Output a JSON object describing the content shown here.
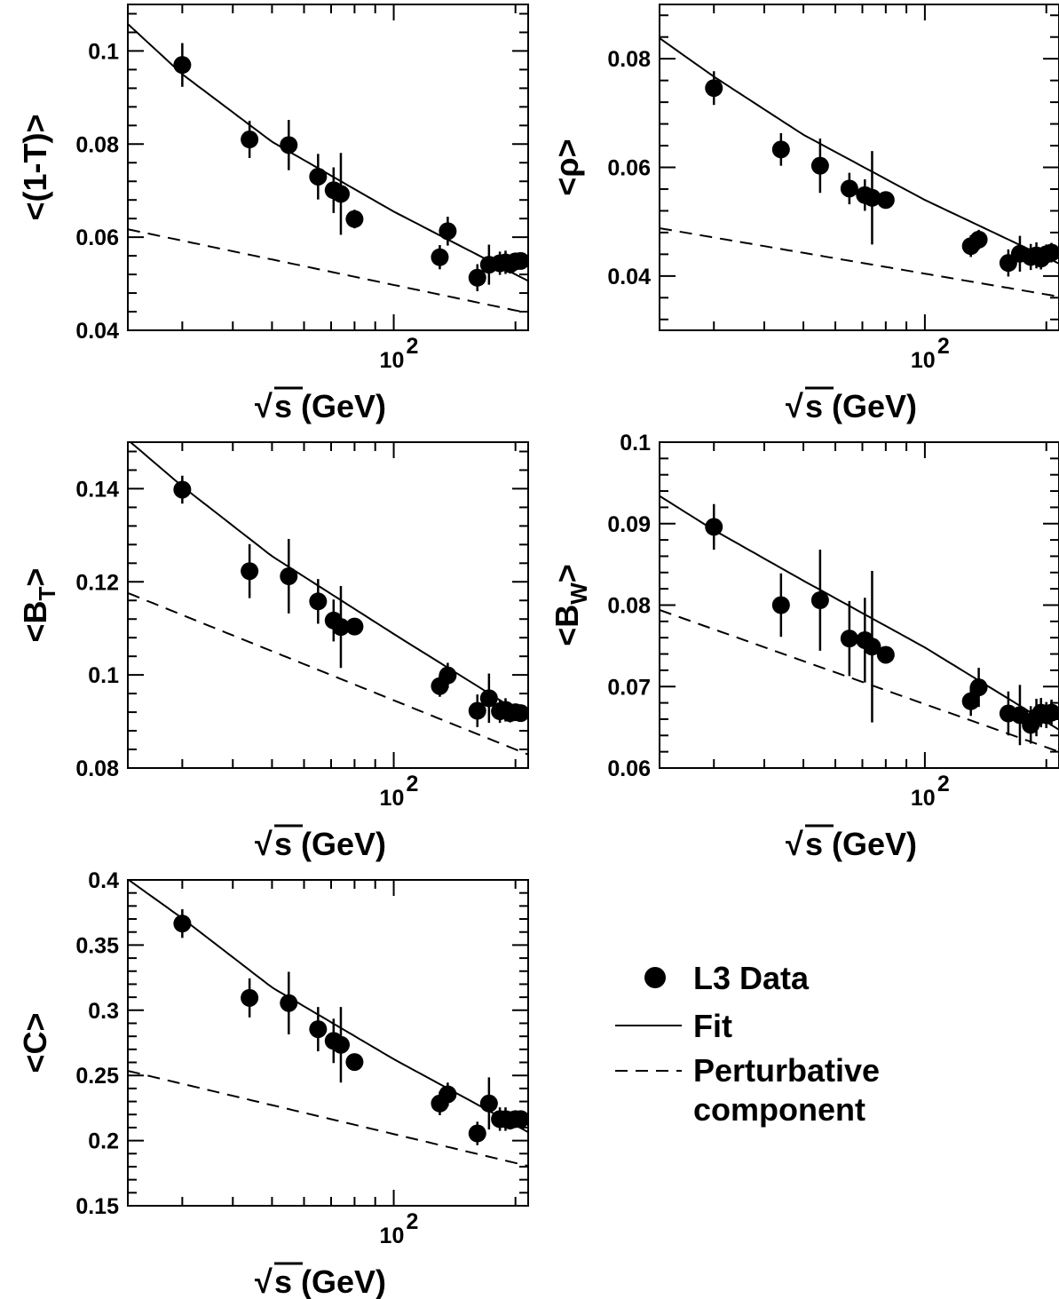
{
  "figure": {
    "x_axis": {
      "scale": "log",
      "range": [
        22,
        215
      ],
      "tick_label_base": "10",
      "tick_label_exp": "2",
      "title": "s  (GeV)",
      "sqrt_symbol": "√"
    },
    "legend": {
      "placement": "lower-right",
      "data_label": "L3 Data",
      "fit_label": "Fit",
      "pert_label_line1": "Perturbative",
      "pert_label_line2": "component"
    },
    "colors": {
      "ink": "#000000",
      "background": "#ffffff"
    }
  },
  "chart_data": [
    {
      "type": "scatter",
      "ylabel": "<(1-T)>",
      "ylim": [
        0.04,
        0.11
      ],
      "yticks": [
        0.04,
        0.06,
        0.08,
        0.1
      ],
      "ytick_labels": [
        "0.04",
        "0.06",
        "0.08",
        "0.1"
      ],
      "series": [
        {
          "name": "L3 Data",
          "kind": "points",
          "x": [
            30,
            44,
            55,
            65,
            71,
            74,
            80,
            130,
            136,
            161,
            172,
            183,
            189,
            194,
            200,
            206
          ],
          "y": [
            0.097,
            0.081,
            0.0798,
            0.073,
            0.0701,
            0.0693,
            0.0639,
            0.0557,
            0.0613,
            0.0513,
            0.0541,
            0.0544,
            0.0546,
            0.0542,
            0.0548,
            0.0549
          ],
          "err": [
            0.0047,
            0.004,
            0.0054,
            0.0049,
            0.0049,
            0.0088,
            0.002,
            0.0026,
            0.0031,
            0.0029,
            0.0043,
            0.0025,
            0.0025,
            0.002,
            0.0018,
            0.0018
          ]
        },
        {
          "name": "Fit",
          "kind": "curve",
          "style": "solid",
          "x": [
            22,
            30,
            50,
            100,
            215
          ],
          "y": [
            0.1058,
            0.095,
            0.0805,
            0.0655,
            0.0506
          ]
        },
        {
          "name": "Perturbative component",
          "kind": "curve",
          "style": "dashed",
          "x": [
            22,
            215
          ],
          "y": [
            0.0617,
            0.0437
          ]
        }
      ]
    },
    {
      "type": "scatter",
      "ylabel": "<ρ>",
      "ylim": [
        0.03,
        0.09
      ],
      "yticks": [
        0.04,
        0.06,
        0.08
      ],
      "ytick_labels": [
        "0.04",
        "0.06",
        "0.08"
      ],
      "series": [
        {
          "name": "L3 Data",
          "kind": "points",
          "x": [
            30,
            44,
            55,
            65,
            71,
            74,
            80,
            130,
            136,
            161,
            172,
            183,
            189,
            194,
            200,
            206
          ],
          "y": [
            0.0746,
            0.0633,
            0.0603,
            0.0561,
            0.0549,
            0.0544,
            0.054,
            0.0455,
            0.0467,
            0.0424,
            0.0441,
            0.0435,
            0.0438,
            0.0432,
            0.044,
            0.0443
          ],
          "err": [
            0.0031,
            0.003,
            0.005,
            0.0029,
            0.0029,
            0.0086,
            0.0013,
            0.002,
            0.0018,
            0.0025,
            0.0033,
            0.0024,
            0.0024,
            0.002,
            0.0018,
            0.0018
          ]
        },
        {
          "name": "Fit",
          "kind": "curve",
          "style": "solid",
          "x": [
            22,
            30,
            50,
            100,
            215
          ],
          "y": [
            0.0838,
            0.0767,
            0.066,
            0.054,
            0.0423
          ]
        },
        {
          "name": "Perturbative component",
          "kind": "curve",
          "style": "dashed",
          "x": [
            22,
            215
          ],
          "y": [
            0.0488,
            0.0362
          ]
        }
      ]
    },
    {
      "type": "scatter",
      "ylabel": "<B",
      "ylabel_sub": "T",
      "ylim": [
        0.08,
        0.15
      ],
      "yticks": [
        0.08,
        0.1,
        0.12,
        0.14
      ],
      "ytick_labels": [
        "0.08",
        "0.1",
        "0.12",
        "0.14"
      ],
      "series": [
        {
          "name": "L3 Data",
          "kind": "points",
          "x": [
            30,
            44,
            55,
            65,
            71,
            74,
            80,
            130,
            136,
            161,
            172,
            183,
            189,
            194,
            200,
            206
          ],
          "y": [
            0.1398,
            0.1223,
            0.1212,
            0.1158,
            0.1117,
            0.1103,
            0.1104,
            0.0976,
            0.0999,
            0.0923,
            0.095,
            0.0922,
            0.0925,
            0.0918,
            0.092,
            0.0918
          ],
          "err": [
            0.003,
            0.0058,
            0.008,
            0.0048,
            0.0045,
            0.0088,
            0.0011,
            0.0023,
            0.0027,
            0.0035,
            0.0053,
            0.0025,
            0.0025,
            0.002,
            0.0018,
            0.0018
          ]
        },
        {
          "name": "Fit",
          "kind": "curve",
          "style": "solid",
          "x": [
            22,
            30,
            50,
            100,
            215
          ],
          "y": [
            0.1505,
            0.1405,
            0.1255,
            0.1088,
            0.0908
          ]
        },
        {
          "name": "Perturbative component",
          "kind": "curve",
          "style": "dashed",
          "x": [
            22,
            215
          ],
          "y": [
            0.1176,
            0.0829
          ]
        }
      ]
    },
    {
      "type": "scatter",
      "ylabel": "<B",
      "ylabel_sub": "W",
      "ylim": [
        0.06,
        0.1
      ],
      "yticks": [
        0.06,
        0.07,
        0.08,
        0.09,
        0.1
      ],
      "ytick_labels": [
        "0.06",
        "0.07",
        "0.08",
        "0.09",
        "0.1"
      ],
      "series": [
        {
          "name": "L3 Data",
          "kind": "points",
          "x": [
            30,
            44,
            55,
            65,
            71,
            74,
            80,
            130,
            136,
            161,
            172,
            183,
            189,
            194,
            200,
            206
          ],
          "y": [
            0.0896,
            0.08,
            0.0806,
            0.0759,
            0.0757,
            0.0749,
            0.0739,
            0.0682,
            0.0699,
            0.0667,
            0.0665,
            0.0653,
            0.0662,
            0.0668,
            0.0665,
            0.0668
          ],
          "err": [
            0.0028,
            0.0039,
            0.0062,
            0.0046,
            0.0052,
            0.0093,
            0.0009,
            0.0018,
            0.0024,
            0.0027,
            0.0037,
            0.0023,
            0.0023,
            0.0018,
            0.0016,
            0.0016
          ]
        },
        {
          "name": "Fit",
          "kind": "curve",
          "style": "solid",
          "x": [
            22,
            30,
            50,
            100,
            215
          ],
          "y": [
            0.0934,
            0.0892,
            0.083,
            0.0748,
            0.0647
          ]
        },
        {
          "name": "Perturbative component",
          "kind": "curve",
          "style": "dashed",
          "x": [
            22,
            215
          ],
          "y": [
            0.0794,
            0.062
          ]
        }
      ]
    },
    {
      "type": "scatter",
      "ylabel": "<C>",
      "ylim": [
        0.15,
        0.4
      ],
      "yticks": [
        0.15,
        0.2,
        0.25,
        0.3,
        0.35,
        0.4
      ],
      "ytick_labels": [
        "0.15",
        "0.2",
        "0.25",
        "0.3",
        "0.35",
        "0.4"
      ],
      "series": [
        {
          "name": "L3 Data",
          "kind": "points",
          "x": [
            30,
            44,
            55,
            65,
            71,
            74,
            80,
            130,
            136,
            161,
            172,
            183,
            189,
            194,
            200,
            206
          ],
          "y": [
            0.3665,
            0.3095,
            0.3055,
            0.2855,
            0.2765,
            0.2735,
            0.2603,
            0.2285,
            0.2355,
            0.2055,
            0.2285,
            0.2165,
            0.2165,
            0.2155,
            0.2165,
            0.2165
          ],
          "err": [
            0.011,
            0.015,
            0.024,
            0.017,
            0.017,
            0.029,
            0.005,
            0.009,
            0.009,
            0.009,
            0.02,
            0.009,
            0.009,
            0.007,
            0.006,
            0.006
          ]
        },
        {
          "name": "Fit",
          "kind": "curve",
          "style": "solid",
          "x": [
            22,
            30,
            50,
            100,
            215
          ],
          "y": [
            0.4005,
            0.3705,
            0.3175,
            0.2625,
            0.2065
          ]
        },
        {
          "name": "Perturbative component",
          "kind": "curve",
          "style": "dashed",
          "x": [
            22,
            215
          ],
          "y": [
            0.2535,
            0.1805
          ]
        }
      ]
    }
  ]
}
